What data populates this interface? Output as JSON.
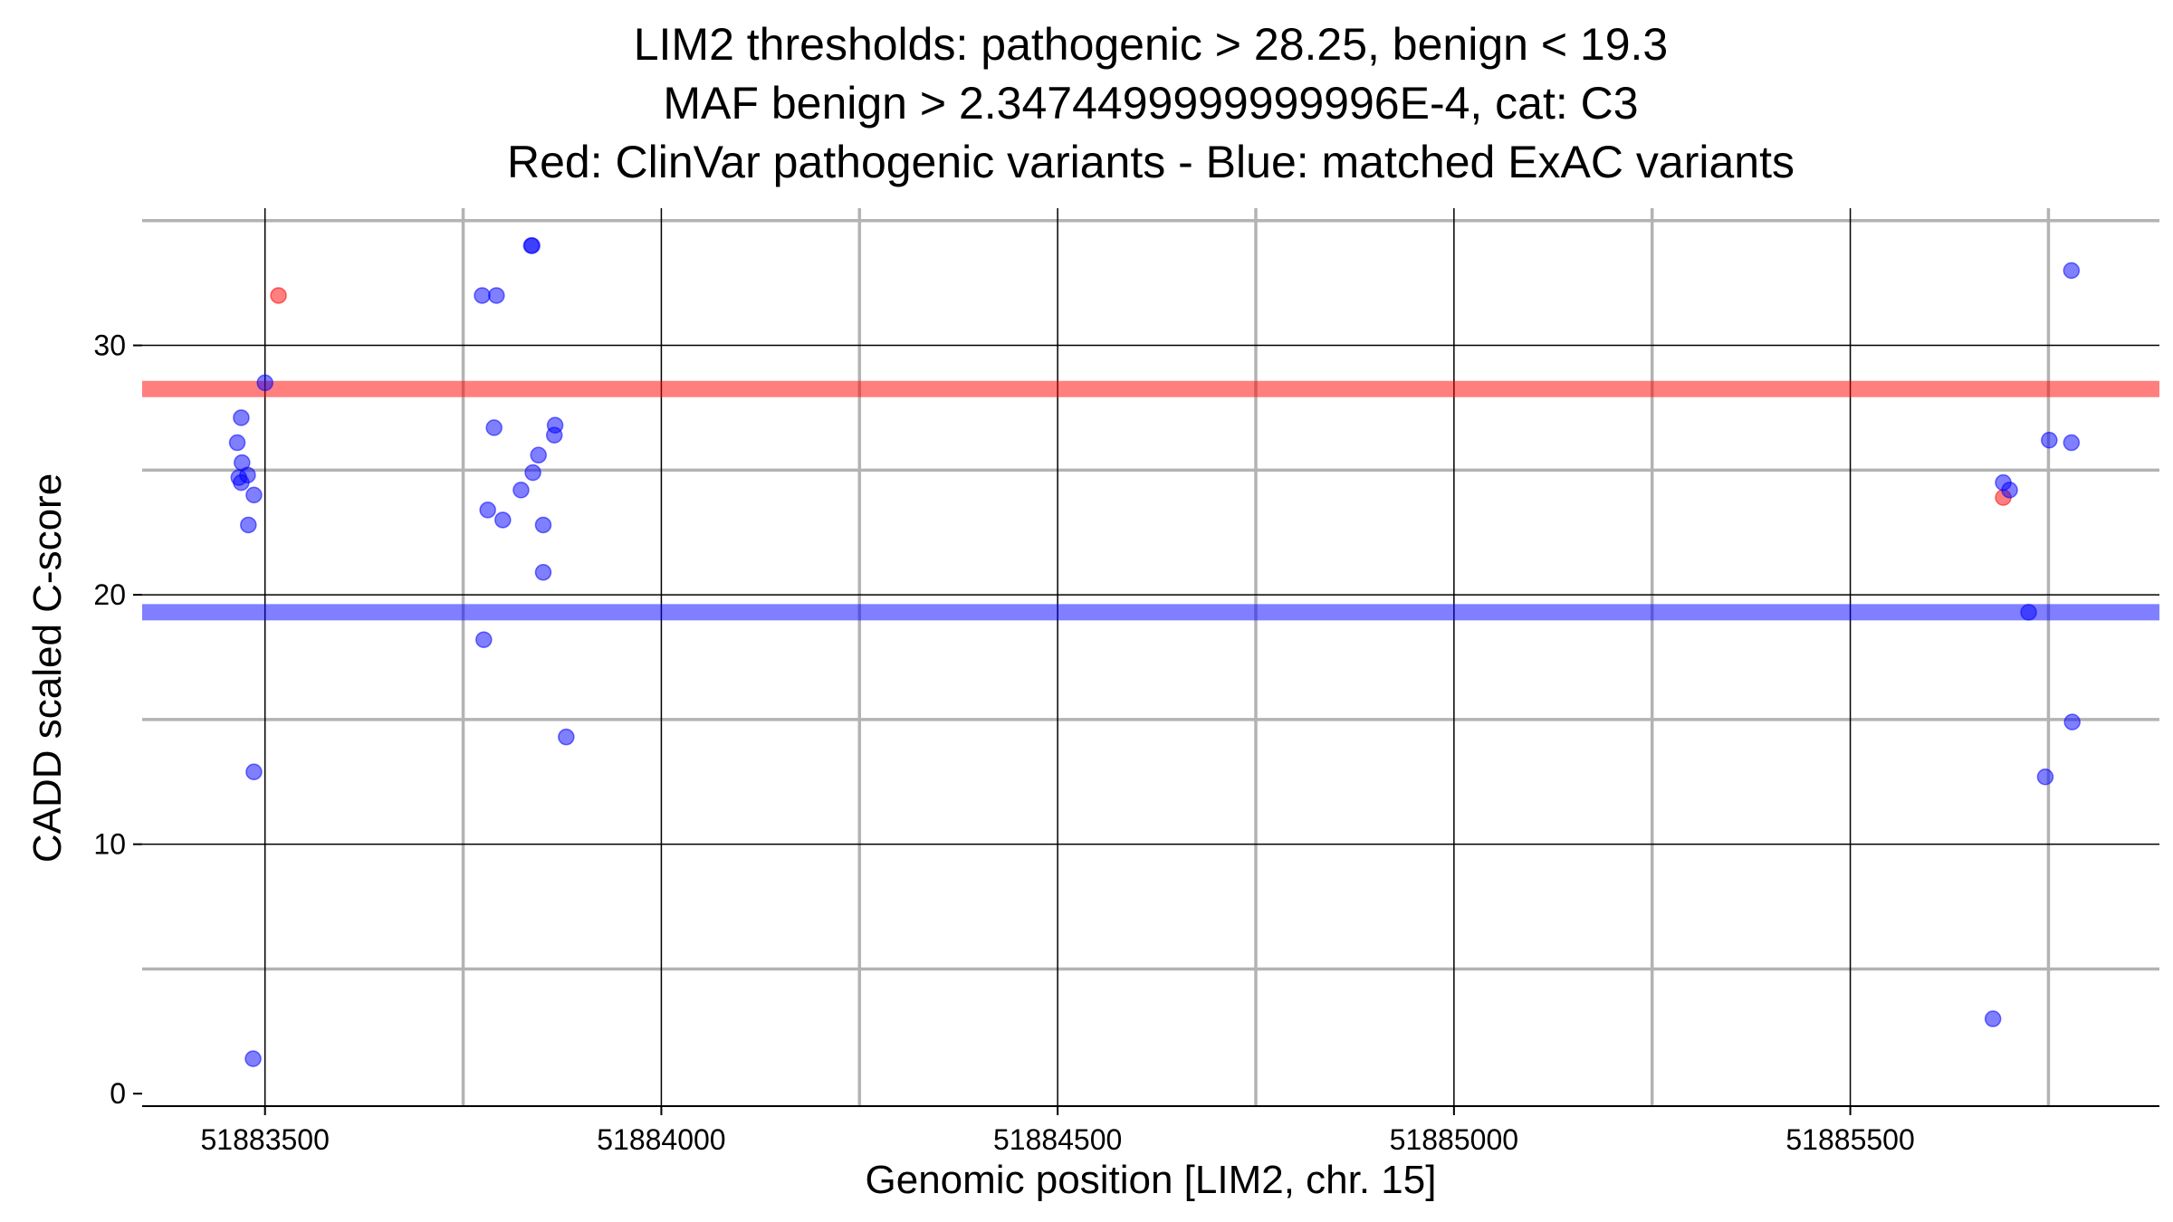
{
  "chart_data": {
    "type": "scatter",
    "title_lines": [
      "LIM2 thresholds: pathogenic > 28.25, benign < 19.3",
      "MAF benign > 2.3474499999999996E-4, cat: C3",
      "Red: ClinVar pathogenic variants - Blue: matched ExAC variants"
    ],
    "xlabel": "Genomic position [LIM2, chr. 15]",
    "ylabel": "CADD scaled C-score",
    "xlim": [
      51883345,
      51885890
    ],
    "ylim": [
      -0.5,
      35.5
    ],
    "x_ticks": [
      51883500,
      51884000,
      51884500,
      51885000,
      51885500
    ],
    "x_tick_labels": [
      "51883500",
      "51884000",
      "51884500",
      "51885000",
      "51885500"
    ],
    "x_minor_grid": [
      51883750,
      51884250,
      51884750,
      51885250,
      51885750
    ],
    "y_ticks": [
      0,
      10,
      20,
      30
    ],
    "y_tick_labels": [
      "0",
      "10",
      "20",
      "30"
    ],
    "y_minor_grid": [
      5,
      15,
      25,
      35
    ],
    "grid": true,
    "thresholds": [
      {
        "value": 28.25,
        "color": "#ff0000"
      },
      {
        "value": 19.3,
        "color": "#0000ff"
      }
    ],
    "series": [
      {
        "color": "#ff0000",
        "points": [
          [
            51883517,
            32.0
          ],
          [
            51885693,
            23.9
          ]
        ]
      },
      {
        "color": "#0000ff",
        "points": [
          [
            51883500,
            28.5
          ],
          [
            51883470,
            27.1
          ],
          [
            51883465,
            26.1
          ],
          [
            51883471,
            25.3
          ],
          [
            51883467,
            24.7
          ],
          [
            51883470,
            24.5
          ],
          [
            51883478,
            24.8
          ],
          [
            51883486,
            24.0
          ],
          [
            51883479,
            22.8
          ],
          [
            51883486,
            12.9
          ],
          [
            51883485,
            1.4
          ],
          [
            51883774,
            32.0
          ],
          [
            51883792,
            32.0
          ],
          [
            51883836,
            34.0
          ],
          [
            51883837,
            34.0
          ],
          [
            51883789,
            26.7
          ],
          [
            51883866,
            26.8
          ],
          [
            51883865,
            26.4
          ],
          [
            51883845,
            25.6
          ],
          [
            51883838,
            24.9
          ],
          [
            51883823,
            24.2
          ],
          [
            51883781,
            23.4
          ],
          [
            51883800,
            23.0
          ],
          [
            51883851,
            22.8
          ],
          [
            51883851,
            20.9
          ],
          [
            51883776,
            18.2
          ],
          [
            51883880,
            14.3
          ],
          [
            51885693,
            24.5
          ],
          [
            51885701,
            24.2
          ],
          [
            51885751,
            26.2
          ],
          [
            51885779,
            26.1
          ],
          [
            51885779,
            33.0
          ],
          [
            51885725,
            19.3
          ],
          [
            51885780,
            14.9
          ],
          [
            51885746,
            12.7
          ],
          [
            51885680,
            3.0
          ]
        ]
      }
    ]
  }
}
